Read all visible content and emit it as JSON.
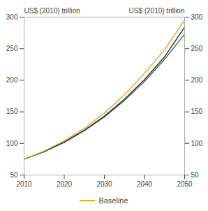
{
  "chart_data": {
    "type": "line",
    "ylabel": "US$ (2010) trillion",
    "y2label": "US$ (2010) trillion",
    "x": [
      2010,
      2015,
      2020,
      2025,
      2030,
      2035,
      2040,
      2045,
      2050
    ],
    "series": [
      {
        "color": "#4a7c3f",
        "values": [
          75,
          87,
          102,
          120,
          142,
          168,
          198,
          233,
          273
        ]
      },
      {
        "color": "#1a3a5c",
        "values": [
          75,
          87,
          102,
          121,
          143,
          170,
          201,
          237,
          284
        ]
      },
      {
        "name": "Baseline",
        "color": "#f5a623",
        "values": [
          75,
          88,
          104,
          124,
          148,
          177,
          211,
          248,
          295
        ]
      }
    ],
    "xlim": [
      2010,
      2050
    ],
    "xticks": [
      2010,
      2020,
      2030,
      2040,
      2050
    ],
    "ylim": [
      50,
      300
    ],
    "yticks": [
      50,
      100,
      150,
      200,
      250,
      300
    ],
    "y2lim": [
      50,
      300
    ],
    "y2ticks": [
      50,
      100,
      150,
      200,
      250,
      300
    ],
    "grid": false,
    "legend": "bottom"
  }
}
